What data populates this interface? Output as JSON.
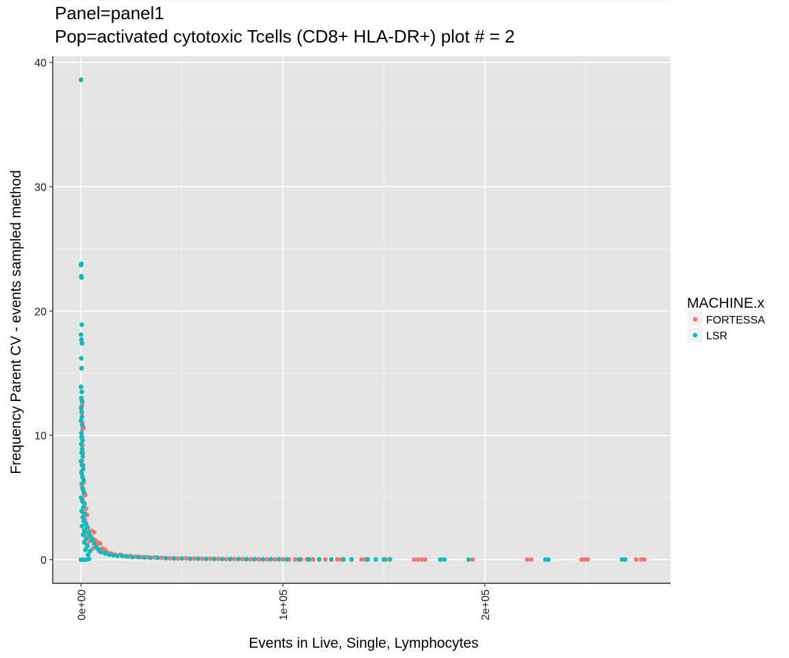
{
  "chart_data": {
    "type": "scatter",
    "title_line1": "Panel=panel1",
    "title_line2": "Pop=activated cytotoxic Tcells (CD8+ HLA-DR+) plot # = 2",
    "xlabel": "Events in Live, Single, Lymphocytes",
    "ylabel": "Frequency Parent CV - events sampled method",
    "xlim": [
      -14000,
      292000
    ],
    "ylim": [
      -1.9,
      40.5
    ],
    "x_ticks": [
      0,
      100000,
      200000
    ],
    "x_tick_labels": [
      "0e+00",
      "1e+05",
      "2e+05"
    ],
    "y_ticks": [
      0,
      10,
      20,
      30,
      40
    ],
    "y_tick_labels": [
      "0",
      "10",
      "20",
      "30",
      "40"
    ],
    "grid": true,
    "background": "#e5e5e5",
    "legend": {
      "title": "MACHINE.x",
      "position": "right",
      "entries": [
        {
          "label": "FORTESSA",
          "color": "#f8766d"
        },
        {
          "label": "LSR",
          "color": "#00bfc4"
        }
      ]
    },
    "series": [
      {
        "name": "FORTESSA",
        "color": "#f8766d",
        "points": [
          [
            300,
            12.9
          ],
          [
            500,
            12.4
          ],
          [
            400,
            11.8
          ],
          [
            600,
            11.0
          ],
          [
            800,
            10.5
          ],
          [
            1200,
            10.6
          ],
          [
            300,
            9.8
          ],
          [
            700,
            9.2
          ],
          [
            900,
            8.6
          ],
          [
            500,
            8.0
          ],
          [
            1100,
            7.6
          ],
          [
            400,
            7.1
          ],
          [
            800,
            6.6
          ],
          [
            1300,
            6.2
          ],
          [
            600,
            5.8
          ],
          [
            1000,
            5.6
          ],
          [
            1500,
            5.3
          ],
          [
            2200,
            5.2
          ],
          [
            700,
            4.9
          ],
          [
            1200,
            4.6
          ],
          [
            1800,
            4.2
          ],
          [
            2500,
            4.1
          ],
          [
            900,
            3.8
          ],
          [
            1400,
            3.5
          ],
          [
            3000,
            3.6
          ],
          [
            2000,
            3.2
          ],
          [
            2600,
            2.9
          ],
          [
            3300,
            2.6
          ],
          [
            1500,
            2.4
          ],
          [
            4500,
            2.3
          ],
          [
            5500,
            2.3
          ],
          [
            6500,
            2.2
          ],
          [
            2200,
            2.0
          ],
          [
            3800,
            1.9
          ],
          [
            5200,
            1.8
          ],
          [
            6900,
            1.6
          ],
          [
            8200,
            1.4
          ],
          [
            9500,
            1.3
          ],
          [
            4200,
            1.5
          ],
          [
            7500,
            1.1
          ],
          [
            3000,
            1.2
          ],
          [
            10500,
            0.9
          ],
          [
            11800,
            0.8
          ],
          [
            13000,
            0.6
          ],
          [
            6000,
            0.9
          ],
          [
            9000,
            0.7
          ],
          [
            15000,
            0.5
          ],
          [
            17000,
            0.4
          ],
          [
            19500,
            0.4
          ],
          [
            22000,
            0.3
          ],
          [
            24500,
            0.3
          ],
          [
            27000,
            0.25
          ],
          [
            30000,
            0.2
          ],
          [
            33000,
            0.2
          ],
          [
            36500,
            0.18
          ],
          [
            40000,
            0.15
          ],
          [
            44000,
            0.12
          ],
          [
            48000,
            0.1
          ],
          [
            52000,
            0.12
          ],
          [
            56000,
            0.1
          ],
          [
            60000,
            0.08
          ],
          [
            64000,
            0.08
          ],
          [
            68000,
            0.06
          ],
          [
            72000,
            0.05
          ],
          [
            76000,
            0.05
          ],
          [
            80000,
            0.05
          ],
          [
            84000,
            0.04
          ],
          [
            88000,
            0.04
          ],
          [
            92000,
            0.03
          ],
          [
            96000,
            0.03
          ],
          [
            100000,
            0.03
          ],
          [
            103000,
            0.02
          ],
          [
            106000,
            0.02
          ],
          [
            109000,
            0.02
          ],
          [
            112000,
            0.02
          ],
          [
            115000,
            0.02
          ],
          [
            118000,
            0.02
          ],
          [
            121000,
            0.02
          ],
          [
            124000,
            0.02
          ],
          [
            127000,
            0.02
          ],
          [
            129000,
            0.02
          ],
          [
            139000,
            0.02
          ],
          [
            141000,
            0.02
          ],
          [
            151000,
            0.02
          ],
          [
            165000,
            0.01
          ],
          [
            167000,
            0.01
          ],
          [
            169000,
            0.01
          ],
          [
            170500,
            0.01
          ],
          [
            194000,
            0.01
          ],
          [
            221000,
            0.01
          ],
          [
            223000,
            0.01
          ],
          [
            248000,
            0.01
          ],
          [
            249500,
            0.01
          ],
          [
            251000,
            0.01
          ],
          [
            275000,
            0.01
          ],
          [
            277500,
            0.01
          ],
          [
            279000,
            0.01
          ]
        ]
      },
      {
        "name": "LSR",
        "color": "#00bfc4",
        "points": [
          [
            0,
            38.6
          ],
          [
            200,
            23.8
          ],
          [
            0,
            23.7
          ],
          [
            100,
            22.8
          ],
          [
            300,
            22.7
          ],
          [
            400,
            18.9
          ],
          [
            0,
            18.1
          ],
          [
            200,
            17.7
          ],
          [
            500,
            17.4
          ],
          [
            100,
            16.2
          ],
          [
            300,
            15.4
          ],
          [
            0,
            13.9
          ],
          [
            400,
            13.5
          ],
          [
            200,
            13.0
          ],
          [
            600,
            12.7
          ],
          [
            100,
            12.2
          ],
          [
            300,
            11.9
          ],
          [
            500,
            11.5
          ],
          [
            0,
            11.2
          ],
          [
            700,
            10.8
          ],
          [
            200,
            10.2
          ],
          [
            400,
            9.9
          ],
          [
            800,
            9.6
          ],
          [
            100,
            9.3
          ],
          [
            600,
            8.9
          ],
          [
            300,
            8.6
          ],
          [
            900,
            8.3
          ],
          [
            0,
            7.9
          ],
          [
            500,
            7.6
          ],
          [
            1100,
            7.3
          ],
          [
            200,
            7.0
          ],
          [
            700,
            6.7
          ],
          [
            1300,
            6.4
          ],
          [
            400,
            6.1
          ],
          [
            900,
            5.7
          ],
          [
            1500,
            5.4
          ],
          [
            0,
            5.0
          ],
          [
            600,
            4.7
          ],
          [
            1700,
            4.5
          ],
          [
            1100,
            4.2
          ],
          [
            300,
            3.9
          ],
          [
            2000,
            3.7
          ],
          [
            800,
            3.4
          ],
          [
            1400,
            3.1
          ],
          [
            2400,
            2.9
          ],
          [
            500,
            2.7
          ],
          [
            3000,
            2.6
          ],
          [
            1800,
            2.3
          ],
          [
            3800,
            2.2
          ],
          [
            1000,
            2.0
          ],
          [
            4600,
            1.9
          ],
          [
            2500,
            1.7
          ],
          [
            5500,
            1.6
          ],
          [
            1600,
            1.4
          ],
          [
            6500,
            1.3
          ],
          [
            3200,
            1.1
          ],
          [
            7600,
            1.0
          ],
          [
            2200,
            0.8
          ],
          [
            8800,
            0.8
          ],
          [
            4500,
            0.7
          ],
          [
            10000,
            0.6
          ],
          [
            3500,
            0.4
          ],
          [
            12000,
            0.5
          ],
          [
            14000,
            0.4
          ],
          [
            16000,
            0.35
          ],
          [
            18000,
            0.3
          ],
          [
            20500,
            0.3
          ],
          [
            23000,
            0.25
          ],
          [
            25500,
            0.2
          ],
          [
            28500,
            0.2
          ],
          [
            31500,
            0.18
          ],
          [
            34500,
            0.15
          ],
          [
            38000,
            0.15
          ],
          [
            42000,
            0.12
          ],
          [
            46000,
            0.1
          ],
          [
            50000,
            0.1
          ],
          [
            54000,
            0.08
          ],
          [
            58000,
            0.08
          ],
          [
            62000,
            0.07
          ],
          [
            66000,
            0.06
          ],
          [
            70000,
            0.05
          ],
          [
            74000,
            0.05
          ],
          [
            78000,
            0.05
          ],
          [
            82000,
            0.04
          ],
          [
            86000,
            0.04
          ],
          [
            90000,
            0.03
          ],
          [
            94000,
            0.03
          ],
          [
            98000,
            0.03
          ],
          [
            102000,
            0.02
          ],
          [
            108000,
            0.02
          ],
          [
            113000,
            0.02
          ],
          [
            118000,
            0.02
          ],
          [
            124000,
            0.02
          ],
          [
            130000,
            0.02
          ],
          [
            134000,
            0.02
          ],
          [
            142000,
            0.02
          ],
          [
            146000,
            0.02
          ],
          [
            150000,
            0.02
          ],
          [
            153000,
            0.02
          ],
          [
            178000,
            0.01
          ],
          [
            180000,
            0.01
          ],
          [
            192000,
            0.01
          ],
          [
            230000,
            0.01
          ],
          [
            231500,
            0.01
          ],
          [
            268000,
            0.01
          ],
          [
            269500,
            0.01
          ],
          [
            0,
            0.0
          ],
          [
            1000,
            0.0
          ],
          [
            2500,
            0.0
          ],
          [
            4000,
            0.05
          ]
        ]
      }
    ]
  }
}
